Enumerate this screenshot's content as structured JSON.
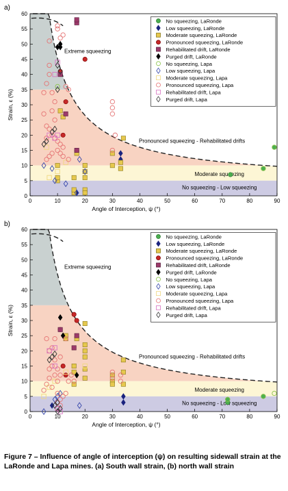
{
  "figure": {
    "caption": "Figure 7 – Influence of angle of interception (ψ) on resulting sidewall strain at the LaRonde and Lapa mines. (a) South wall strain, (b) north wall strain",
    "panel_labels": [
      "a)",
      "b)"
    ]
  },
  "chart_data": [
    {
      "type": "scatter",
      "panel": "a)",
      "xlabel": "Angle of Interception, ψ (°)",
      "ylabel": "Strain, ε (%)",
      "xlim": [
        0,
        90
      ],
      "ylim": [
        0,
        60
      ],
      "xticks": [
        0,
        10,
        20,
        30,
        40,
        50,
        60,
        70,
        80,
        90
      ],
      "yticks": [
        0,
        5,
        10,
        15,
        20,
        25,
        30,
        35,
        40,
        45,
        50,
        55,
        60
      ],
      "grid": false,
      "legend_placement": "top-right",
      "zones": [
        {
          "name": "Extreme squeezing",
          "color": "#c9d1d0"
        },
        {
          "name": "Pronounced squeezing - Rehabilitated drifts",
          "color": "#f8d3c2"
        },
        {
          "name": "Moderate squeezing",
          "color": "#fdf6d5"
        },
        {
          "name": "No squeezing - Low squeezing",
          "color": "#cdcbe3"
        }
      ],
      "zone_bounds": [
        60,
        35,
        10,
        5,
        0
      ],
      "series": [
        {
          "name": "No squeezing, LaRonde",
          "marker": "circle",
          "filled": true,
          "color": "#4caf50",
          "edge": "#2e7d32",
          "points": [
            [
              73,
              7
            ],
            [
              85,
              9
            ],
            [
              89,
              16
            ]
          ]
        },
        {
          "name": "Low squeezing, LaRonde",
          "marker": "diamond",
          "filled": true,
          "color": "#1a237e",
          "edge": "#1a237e",
          "points": [
            [
              33,
              12
            ],
            [
              33,
              14
            ],
            [
              17,
              1
            ]
          ]
        },
        {
          "name": "Moderate squeezing, LaRonde",
          "marker": "square",
          "filled": true,
          "color": "#e6c84e",
          "edge": "#8a7a20",
          "points": [
            [
              10,
              5
            ],
            [
              10,
              6
            ],
            [
              10,
              10
            ],
            [
              16,
              1
            ],
            [
              16,
              2
            ],
            [
              20,
              2
            ],
            [
              20,
              1
            ],
            [
              20,
              6
            ],
            [
              16,
              6
            ],
            [
              30,
              14
            ],
            [
              30,
              10
            ],
            [
              33,
              9
            ],
            [
              33,
              11
            ],
            [
              34,
              19
            ],
            [
              11,
              28
            ],
            [
              12,
              26
            ],
            [
              17,
              14
            ],
            [
              20,
              10
            ],
            [
              20,
              8
            ]
          ]
        },
        {
          "name": "Pronounced squeezing, LaRonde",
          "marker": "circle",
          "filled": true,
          "color": "#c62828",
          "edge": "#7f0000",
          "points": [
            [
              11,
              41
            ],
            [
              20,
              45
            ],
            [
              17,
              15
            ],
            [
              12,
              20
            ],
            [
              13,
              31
            ]
          ]
        },
        {
          "name": "Rehabilitated drift, LaRonde",
          "marker": "square",
          "filled": true,
          "color": "#9c3a6a",
          "edge": "#5a1f3e",
          "points": [
            [
              17,
              57
            ],
            [
              17,
              58
            ],
            [
              13,
              27
            ],
            [
              17,
              15
            ],
            [
              11,
              40
            ]
          ]
        },
        {
          "name": "Purged drift, LaRonde",
          "marker": "diamond",
          "filled": true,
          "color": "#000000",
          "edge": "#000000",
          "points": [
            [
              11,
              49
            ],
            [
              11,
              50
            ],
            [
              10,
              49
            ]
          ]
        },
        {
          "name": "No squeezing, Lapa",
          "marker": "circle",
          "filled": false,
          "color": "#8bc34a",
          "points": [
            [
              89,
              16
            ],
            [
              85,
              9
            ],
            [
              10,
              36
            ]
          ]
        },
        {
          "name": "Low squeezing, Lapa",
          "marker": "diamond",
          "filled": false,
          "color": "#3949ab",
          "points": [
            [
              5,
              10
            ],
            [
              8,
              9
            ],
            [
              9,
              5
            ],
            [
              17,
              1
            ],
            [
              13,
              4
            ],
            [
              20,
              8
            ],
            [
              18,
              12
            ]
          ]
        },
        {
          "name": "Moderate squeezing, Lapa",
          "marker": "square",
          "filled": false,
          "color": "#f0d880",
          "points": [
            [
              7,
              6
            ],
            [
              10,
              8
            ],
            [
              13,
              11
            ],
            [
              6,
              16
            ]
          ]
        },
        {
          "name": "Pronounced squeezing, Lapa",
          "marker": "circle",
          "filled": false,
          "color": "#e57373",
          "points": [
            [
              5,
              34
            ],
            [
              6,
              37
            ],
            [
              7,
              40
            ],
            [
              7,
              43
            ],
            [
              8,
              34
            ],
            [
              9,
              31
            ],
            [
              10,
              56
            ],
            [
              10,
              55
            ],
            [
              11,
              52
            ],
            [
              12,
              53
            ],
            [
              7,
              51
            ],
            [
              5,
              27
            ],
            [
              6,
              23
            ],
            [
              7,
              22
            ],
            [
              8,
              20
            ],
            [
              9,
              19
            ],
            [
              10,
              18
            ],
            [
              11,
              17
            ],
            [
              12,
              16
            ],
            [
              13,
              36
            ],
            [
              14,
              35
            ],
            [
              6,
              12
            ],
            [
              7,
              13
            ],
            [
              8,
              14
            ],
            [
              10,
              15
            ],
            [
              11,
              14
            ],
            [
              12,
              13
            ],
            [
              14,
              12
            ],
            [
              30,
              29
            ],
            [
              30,
              31
            ],
            [
              30,
              27
            ],
            [
              31,
              20
            ],
            [
              30,
              15
            ],
            [
              6,
              19
            ],
            [
              8,
              28
            ],
            [
              9,
              25
            ]
          ]
        },
        {
          "name": "Rehabilitated drift, Lapa",
          "marker": "square",
          "filled": false,
          "color": "#d874c2",
          "points": [
            [
              7,
              20
            ],
            [
              9,
              19
            ],
            [
              10,
              20
            ],
            [
              10,
              44
            ],
            [
              9,
              40
            ]
          ]
        },
        {
          "name": "Purged drift, Lapa",
          "marker": "diamond",
          "filled": false,
          "color": "#333333",
          "points": [
            [
              5,
              17
            ],
            [
              6,
              18
            ],
            [
              8,
              21
            ],
            [
              9,
              22
            ],
            [
              10,
              43
            ],
            [
              10,
              35
            ],
            [
              11,
              41
            ]
          ]
        }
      ],
      "annotations": [
        "Extreme squeezing",
        "Pronounced squeezing - Rehabilitated drifts",
        "Moderate squeezing",
        "No squeezing - Low squeezing"
      ]
    },
    {
      "type": "scatter",
      "panel": "b)",
      "xlabel": "Angle of Interception, ψ (°)",
      "ylabel": "Strain, ε (%)",
      "xlim": [
        0,
        90
      ],
      "ylim": [
        0,
        60
      ],
      "xticks": [
        0,
        10,
        20,
        30,
        40,
        50,
        60,
        70,
        80,
        90
      ],
      "yticks": [
        0,
        5,
        10,
        15,
        20,
        25,
        30,
        35,
        40,
        45,
        50,
        55,
        60
      ],
      "grid": false,
      "legend_placement": "top-right",
      "zone_bounds": [
        60,
        35,
        10,
        5,
        0
      ],
      "series": [
        {
          "name": "No squeezing, LaRonde",
          "marker": "circle",
          "filled": true,
          "color": "#4caf50",
          "edge": "#2e7d32",
          "points": [
            [
              72,
              3
            ],
            [
              72,
              4
            ],
            [
              85,
              5
            ]
          ]
        },
        {
          "name": "Low squeezing, LaRonde",
          "marker": "diamond",
          "filled": true,
          "color": "#1a237e",
          "edge": "#1a237e",
          "points": [
            [
              34,
              3
            ],
            [
              34,
              5
            ],
            [
              8,
              2
            ]
          ]
        },
        {
          "name": "Moderate squeezing, LaRonde",
          "marker": "square",
          "filled": true,
          "color": "#e6c84e",
          "edge": "#8a7a20",
          "points": [
            [
              13,
              24
            ],
            [
              13,
              25
            ],
            [
              16,
              13
            ],
            [
              16,
              15
            ],
            [
              16,
              9
            ],
            [
              20,
              29
            ],
            [
              20,
              22
            ],
            [
              20,
              20
            ],
            [
              20,
              18
            ],
            [
              20,
              11
            ],
            [
              20,
              14
            ],
            [
              30,
              10
            ],
            [
              30,
              12
            ],
            [
              30,
              9
            ],
            [
              34,
              17
            ],
            [
              34,
              13
            ],
            [
              34,
              9
            ],
            [
              17,
              24
            ]
          ]
        },
        {
          "name": "Pronounced squeezing, LaRonde",
          "marker": "circle",
          "filled": true,
          "color": "#c62828",
          "edge": "#7f0000",
          "points": [
            [
              11,
              27
            ],
            [
              16,
              32
            ],
            [
              17,
              30
            ],
            [
              12,
              15
            ],
            [
              13,
              12
            ]
          ]
        },
        {
          "name": "Rehabilitated drift, LaRonde",
          "marker": "square",
          "filled": true,
          "color": "#9c3a6a",
          "edge": "#5a1f3e",
          "points": [
            [
              17,
              25
            ],
            [
              16,
              21
            ],
            [
              11,
              27
            ]
          ]
        },
        {
          "name": "Purged drift, LaRonde",
          "marker": "diamond",
          "filled": true,
          "color": "#000000",
          "edge": "#000000",
          "points": [
            [
              11,
              31
            ],
            [
              12,
              25
            ],
            [
              17,
              12
            ]
          ]
        },
        {
          "name": "No squeezing, Lapa",
          "marker": "circle",
          "filled": false,
          "color": "#8bc34a",
          "points": [
            [
              89,
              6
            ],
            [
              72,
              4
            ],
            [
              85,
              5
            ]
          ]
        },
        {
          "name": "Low squeezing, Lapa",
          "marker": "diamond",
          "filled": false,
          "color": "#3949ab",
          "points": [
            [
              5,
              0
            ],
            [
              10,
              5
            ],
            [
              11,
              6
            ],
            [
              18,
              2
            ],
            [
              9,
              4
            ]
          ]
        },
        {
          "name": "Moderate squeezing, Lapa",
          "marker": "square",
          "filled": false,
          "color": "#f0d880",
          "points": [
            [
              5,
              5
            ],
            [
              7,
              8
            ],
            [
              9,
              10
            ],
            [
              13,
              13
            ],
            [
              20,
              15
            ]
          ]
        },
        {
          "name": "Pronounced squeezing, Lapa",
          "marker": "circle",
          "filled": false,
          "color": "#e57373",
          "points": [
            [
              5,
              7
            ],
            [
              6,
              9
            ],
            [
              7,
              11
            ],
            [
              7,
              14
            ],
            [
              8,
              8
            ],
            [
              8,
              15
            ],
            [
              9,
              12
            ],
            [
              9,
              17
            ],
            [
              10,
              14
            ],
            [
              10,
              6
            ],
            [
              10,
              10
            ],
            [
              10,
              3
            ],
            [
              11,
              12
            ],
            [
              11,
              18
            ],
            [
              11,
              4
            ],
            [
              12,
              5
            ],
            [
              13,
              6
            ],
            [
              14,
              10
            ],
            [
              8,
              21
            ],
            [
              7,
              20
            ],
            [
              6,
              24
            ],
            [
              9,
              24
            ],
            [
              13,
              24
            ],
            [
              15,
              12
            ],
            [
              16,
              10
            ],
            [
              30,
              13
            ],
            [
              30,
              11
            ],
            [
              33,
              12
            ],
            [
              33,
              10
            ],
            [
              10,
              1
            ],
            [
              11,
              2
            ]
          ]
        },
        {
          "name": "Rehabilitated drift, Lapa",
          "marker": "square",
          "filled": false,
          "color": "#d874c2",
          "points": [
            [
              7,
              20
            ],
            [
              9,
              21
            ],
            [
              9,
              15
            ],
            [
              10,
              1
            ],
            [
              11,
              0
            ]
          ]
        },
        {
          "name": "Purged drift, Lapa",
          "marker": "diamond",
          "filled": false,
          "color": "#333333",
          "points": [
            [
              7,
              17
            ],
            [
              8,
              18
            ],
            [
              9,
              19
            ],
            [
              10,
              0
            ],
            [
              9,
              2
            ],
            [
              11,
              1
            ],
            [
              10,
              3
            ]
          ]
        }
      ],
      "annotations": [
        "Extreme squeezing",
        "Pronounced squeezing - Rehabilitated drifts",
        "Moderate squeezing",
        "No squeezing - Low squeezing"
      ]
    }
  ]
}
